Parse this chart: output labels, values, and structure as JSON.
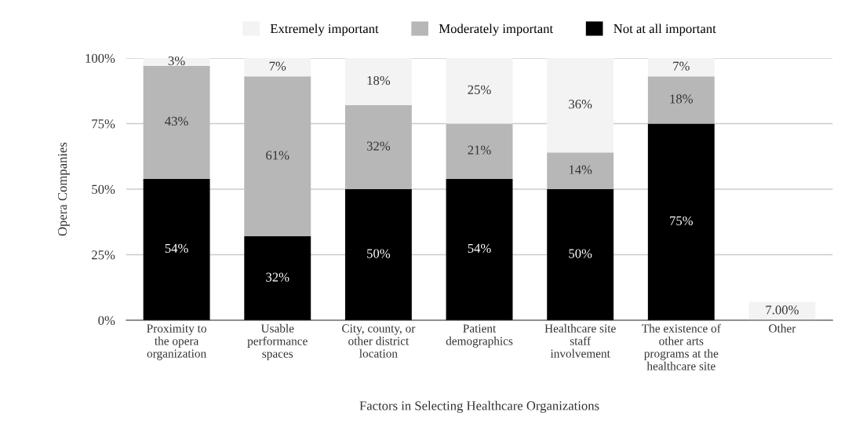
{
  "chart_data": {
    "type": "bar",
    "stacked": true,
    "xlabel": "Factors in Selecting Healthcare Organizations",
    "ylabel": "Opera Companies",
    "categories": [
      "Proximity to\nthe opera\norganization",
      "Usable\nperformance\nspaces",
      "City, county, or\nother district\nlocation",
      "Patient\ndemographics",
      "Healthcare site\nstaff\ninvolvement",
      "The existence of\nother arts\nprograms at the\nhealthcare site",
      "Other"
    ],
    "series": [
      {
        "name": "Not at all important",
        "color": "#000000",
        "values": [
          54,
          32,
          50,
          54,
          50,
          75,
          null
        ],
        "value_labels": [
          "54%",
          "32%",
          "50%",
          "54%",
          "50%",
          "75%",
          null
        ]
      },
      {
        "name": "Moderately important",
        "color": "#b7b7b7",
        "values": [
          43,
          61,
          32,
          21,
          14,
          18,
          null
        ],
        "value_labels": [
          "43%",
          "61%",
          "32%",
          "21%",
          "14%",
          "18%",
          null
        ]
      },
      {
        "name": "Extremely important",
        "color": "#f3f3f3",
        "values": [
          3,
          7,
          18,
          25,
          36,
          7,
          7
        ],
        "value_labels": [
          "3%",
          "7%",
          "18%",
          "25%",
          "36%",
          "7%",
          "7.00%"
        ]
      }
    ],
    "ylim": [
      0,
      100
    ],
    "yticks": [
      {
        "value": 0,
        "label": "0%"
      },
      {
        "value": 25,
        "label": "25%"
      },
      {
        "value": 50,
        "label": "50%"
      },
      {
        "value": 75,
        "label": "75%"
      },
      {
        "value": 100,
        "label": "100%"
      }
    ],
    "grid": "y",
    "legend": "top"
  }
}
